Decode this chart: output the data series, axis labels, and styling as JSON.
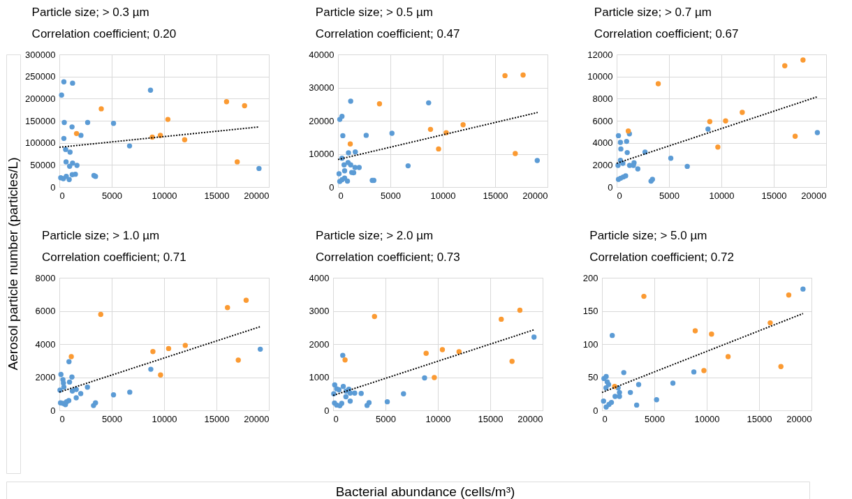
{
  "chart_data": [
    {
      "type": "scatter",
      "title": "Particle size; > 0.3 µm",
      "subtitle": "Correlation coefficient; 0.20",
      "ylabel": "Aerosol particle number (particles/L)",
      "xlim": [
        0,
        20000
      ],
      "xticks": [
        0,
        5000,
        10000,
        15000,
        20000
      ],
      "ylim": [
        0,
        300000
      ],
      "yticks": [
        0,
        50000,
        100000,
        150000,
        200000,
        250000,
        300000
      ],
      "grid": true,
      "series": [
        {
          "type": "scatter",
          "marker": "circle",
          "color": "#5b9bd5",
          "x": [
            210,
            430,
            1260,
            8700,
            470,
            2700,
            5170,
            1210,
            2060,
            430,
            6700,
            600,
            1020,
            640,
            1260,
            980,
            1680,
            1230,
            1530,
            130,
            380,
            660,
            940,
            3300,
            3450,
            19060
          ],
          "values": [
            208000,
            238000,
            235000,
            219000,
            146000,
            146000,
            144000,
            136000,
            117000,
            110000,
            93000,
            85000,
            79000,
            57000,
            54000,
            47000,
            49000,
            28000,
            29000,
            21000,
            19000,
            24000,
            17000,
            26000,
            24000,
            42000
          ]
        },
        {
          "type": "scatter",
          "marker": "circle",
          "color": "#fb9a32",
          "x": [
            1640,
            4000,
            8870,
            9640,
            10360,
            11960,
            15960,
            17680,
            16980
          ],
          "values": [
            121000,
            177000,
            113000,
            117000,
            153000,
            107000,
            193000,
            184000,
            57000
          ]
        },
        {
          "type": "line",
          "marker": "none",
          "color": "#000000",
          "line_style": "dotted",
          "x": [
            0,
            19060
          ],
          "values": [
            90000,
            136000
          ]
        }
      ]
    },
    {
      "type": "scatter",
      "title": "Particle size; > 0.5 µm",
      "subtitle": "Correlation coefficient; 0.47",
      "xlim": [
        0,
        20000
      ],
      "xticks": [
        0,
        5000,
        10000,
        15000,
        20000
      ],
      "ylim": [
        0,
        40000
      ],
      "yticks": [
        0,
        10000,
        20000,
        30000,
        40000
      ],
      "grid": true,
      "series": [
        {
          "type": "scatter",
          "marker": "circle",
          "color": "#5b9bd5",
          "x": [
            170,
            380,
            1210,
            8650,
            460,
            2690,
            5150,
            1000,
            1650,
            380,
            960,
            580,
            1210,
            1620,
            2020,
            630,
            1310,
            1500,
            6690,
            100,
            170,
            380,
            630,
            900,
            3270,
            3420,
            19020
          ],
          "values": [
            20400,
            21300,
            25900,
            25400,
            15500,
            15600,
            16200,
            10300,
            10600,
            8700,
            7400,
            6700,
            6700,
            5900,
            5900,
            4900,
            4400,
            4300,
            6400,
            4000,
            1700,
            2200,
            2700,
            1800,
            2000,
            2000,
            8000
          ]
        },
        {
          "type": "scatter",
          "marker": "circle",
          "color": "#fb9a32",
          "x": [
            1170,
            3960,
            8830,
            9600,
            10330,
            11940,
            15940,
            17670,
            16920
          ],
          "values": [
            13000,
            25100,
            17400,
            11500,
            16400,
            18800,
            33600,
            33800,
            10100
          ]
        },
        {
          "type": "line",
          "marker": "none",
          "color": "#000000",
          "line_style": "dotted",
          "x": [
            0,
            19060
          ],
          "values": [
            8300,
            22500
          ]
        }
      ]
    },
    {
      "type": "scatter",
      "title": "Particle size; > 0.7 µm",
      "subtitle": "Correlation coefficient; 0.67",
      "xlim": [
        0,
        20000
      ],
      "xticks": [
        0,
        5000,
        10000,
        15000,
        20000
      ],
      "ylim": [
        0,
        12000
      ],
      "yticks": [
        0,
        2000,
        4000,
        6000,
        8000,
        10000,
        12000
      ],
      "grid": true,
      "series": [
        {
          "type": "scatter",
          "marker": "circle",
          "color": "#5b9bd5",
          "x": [
            170,
            360,
            950,
            400,
            1010,
            1220,
            2710,
            8720,
            5170,
            360,
            590,
            130,
            1240,
            1600,
            1660,
            2020,
            6740,
            170,
            380,
            630,
            860,
            3280,
            3420,
            19160
          ],
          "values": [
            4650,
            4040,
            4130,
            3450,
            3120,
            4820,
            3160,
            5240,
            2610,
            2420,
            2150,
            1960,
            1960,
            1960,
            2190,
            1640,
            1870,
            690,
            800,
            910,
            1010,
            530,
            690,
            4930
          ]
        },
        {
          "type": "scatter",
          "marker": "circle",
          "color": "#fb9a32",
          "x": [
            1110,
            3970,
            8890,
            9660,
            10400,
            11990,
            16050,
            17790,
            17040
          ],
          "values": [
            5070,
            9350,
            5920,
            3620,
            5980,
            6760,
            10970,
            11490,
            4590
          ]
        },
        {
          "type": "line",
          "marker": "none",
          "color": "#000000",
          "line_style": "dotted",
          "x": [
            0,
            19100
          ],
          "values": [
            2150,
            8150
          ]
        }
      ]
    },
    {
      "type": "scatter",
      "title": "Particle size; > 1.0 µm",
      "subtitle": "Correlation coefficient; 0.71",
      "xlim": [
        0,
        20000
      ],
      "xticks": [
        0,
        5000,
        10000,
        15000,
        20000
      ],
      "ylim": [
        0,
        8000
      ],
      "yticks": [
        0,
        2000,
        4000,
        6000,
        8000
      ],
      "grid": true,
      "series": [
        {
          "type": "scatter",
          "marker": "circle",
          "color": "#5b9bd5",
          "x": [
            150,
            340,
            390,
            430,
            920,
            970,
            1200,
            60,
            1240,
            1610,
            1610,
            2040,
            2680,
            5170,
            6720,
            8730,
            110,
            360,
            580,
            690,
            900,
            3260,
            3450,
            19180
          ],
          "values": [
            2170,
            1850,
            1640,
            1400,
            2940,
            1710,
            2010,
            1220,
            1170,
            1260,
            760,
            1010,
            1400,
            940,
            1100,
            2480,
            450,
            420,
            350,
            520,
            590,
            290,
            450,
            3690
          ]
        },
        {
          "type": "scatter",
          "marker": "circle",
          "color": "#fb9a32",
          "x": [
            1140,
            3950,
            8930,
            9660,
            10430,
            12020,
            16050,
            17830,
            17080
          ],
          "values": [
            3240,
            5790,
            3550,
            2140,
            3730,
            3920,
            6200,
            6640,
            3030
          ]
        },
        {
          "type": "line",
          "marker": "none",
          "color": "#000000",
          "line_style": "dotted",
          "x": [
            0,
            19180
          ],
          "values": [
            1100,
            5050
          ]
        }
      ]
    },
    {
      "type": "scatter",
      "title": "Particle size; > 2.0 µm",
      "subtitle": "Correlation coefficient; 0.73",
      "xlabel": "Bacterial abundance (cells/m³)",
      "xlim": [
        0,
        20000
      ],
      "xticks": [
        0,
        5000,
        10000,
        15000,
        20000
      ],
      "ylim": [
        0,
        4000
      ],
      "yticks": [
        0,
        1000,
        2000,
        3000,
        4000
      ],
      "grid": true,
      "series": [
        {
          "type": "scatter",
          "marker": "circle",
          "color": "#5b9bd5",
          "x": [
            150,
            340,
            560,
            970,
            920,
            60,
            1240,
            1500,
            1630,
            2060,
            2680,
            1220,
            1630,
            5170,
            6720,
            8730,
            130,
            340,
            640,
            820,
            3240,
            3430,
            19180
          ],
          "values": [
            770,
            650,
            620,
            720,
            1660,
            500,
            580,
            640,
            520,
            520,
            510,
            410,
            280,
            260,
            500,
            980,
            220,
            160,
            140,
            210,
            150,
            230,
            2210
          ]
        },
        {
          "type": "scatter",
          "marker": "circle",
          "color": "#fb9a32",
          "x": [
            1140,
            3950,
            8880,
            9660,
            10430,
            12020,
            16050,
            17830,
            17080
          ],
          "values": [
            1520,
            2830,
            1720,
            990,
            1830,
            1770,
            2750,
            3020,
            1480
          ]
        },
        {
          "type": "line",
          "marker": "none",
          "color": "#000000",
          "line_style": "dotted",
          "x": [
            0,
            19180
          ],
          "values": [
            450,
            2430
          ]
        }
      ]
    },
    {
      "type": "scatter",
      "title": "Particle size; > 5.0 µm",
      "subtitle": "Correlation coefficient; 0.72",
      "xlim": [
        0,
        20000
      ],
      "xticks": [
        0,
        5000,
        10000,
        15000,
        20000
      ],
      "ylim": [
        0,
        200
      ],
      "yticks": [
        0,
        50,
        100,
        150,
        200
      ],
      "grid": true,
      "series": [
        {
          "type": "scatter",
          "marker": "circle",
          "color": "#5b9bd5",
          "x": [
            190,
            400,
            500,
            630,
            380,
            980,
            1540,
            1670,
            1670,
            1250,
            2080,
            2710,
            3500,
            5210,
            6770,
            8770,
            150,
            400,
            670,
            900,
            3310,
            19190
          ],
          "values": [
            48,
            51,
            43,
            39,
            34,
            113,
            34,
            27,
            21,
            21,
            57,
            27,
            39,
            16,
            41,
            58,
            14,
            5,
            9,
            12,
            8,
            183
          ]
        },
        {
          "type": "scatter",
          "marker": "circle",
          "color": "#fb9a32",
          "x": [
            1210,
            4000,
            8900,
            9730,
            10460,
            12040,
            16060,
            17830,
            17080
          ],
          "values": [
            36,
            172,
            120,
            60,
            115,
            81,
            132,
            174,
            66
          ]
        },
        {
          "type": "line",
          "marker": "none",
          "color": "#000000",
          "line_style": "dotted",
          "x": [
            0,
            19190
          ],
          "values": [
            27,
            146
          ]
        }
      ]
    }
  ]
}
